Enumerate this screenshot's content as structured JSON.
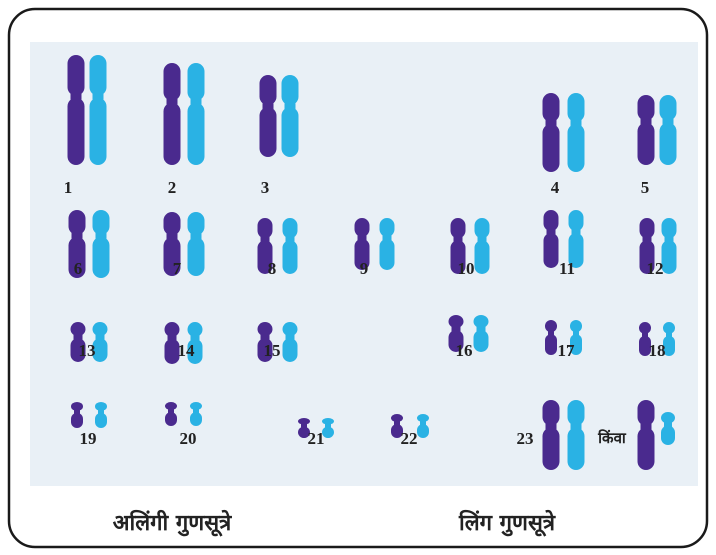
{
  "chromosome_numbers": [
    "1",
    "2",
    "3",
    "4",
    "5",
    "6",
    "7",
    "8",
    "9",
    "10",
    "11",
    "12",
    "13",
    "14",
    "15",
    "16",
    "17",
    "18",
    "19",
    "20",
    "21",
    "22",
    "23"
  ],
  "or_label": "किंवा",
  "autosomes_label": "अलिंगी गुणसूत्रे",
  "sex_chromosomes_label": "लिंग गुणसूत्रे"
}
